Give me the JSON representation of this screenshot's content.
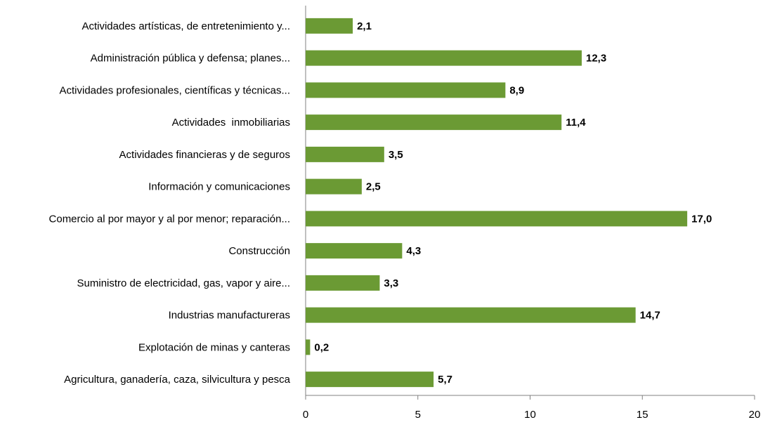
{
  "chart_data": {
    "type": "barh",
    "categories": [
      "Actividades artísticas, de entretenimiento y...",
      "Administración pública y defensa; planes...",
      "Actividades profesionales, científicas y técnicas...",
      "Actividades  inmobiliarias",
      "Actividades financieras y de seguros",
      "Información y comunicaciones",
      "Comercio al por mayor y al por menor; reparación...",
      "Construcción",
      "Suministro de electricidad, gas, vapor y aire...",
      "Industrias manufactureras",
      "Explotación de minas y canteras",
      "Agricultura, ganadería, caza, silvicultura y pesca"
    ],
    "values": [
      2.1,
      12.3,
      8.9,
      11.4,
      3.5,
      2.5,
      17.0,
      4.3,
      3.3,
      14.7,
      0.2,
      5.7
    ],
    "value_labels": [
      "2,1",
      "12,3",
      "8,9",
      "11,4",
      "3,5",
      "2,5",
      "17,0",
      "4,3",
      "3,3",
      "14,7",
      "0,2",
      "5,7"
    ],
    "color": "#6b9a34",
    "xlim": [
      0,
      20
    ],
    "xticks": [
      0,
      5,
      10,
      15,
      20
    ]
  }
}
